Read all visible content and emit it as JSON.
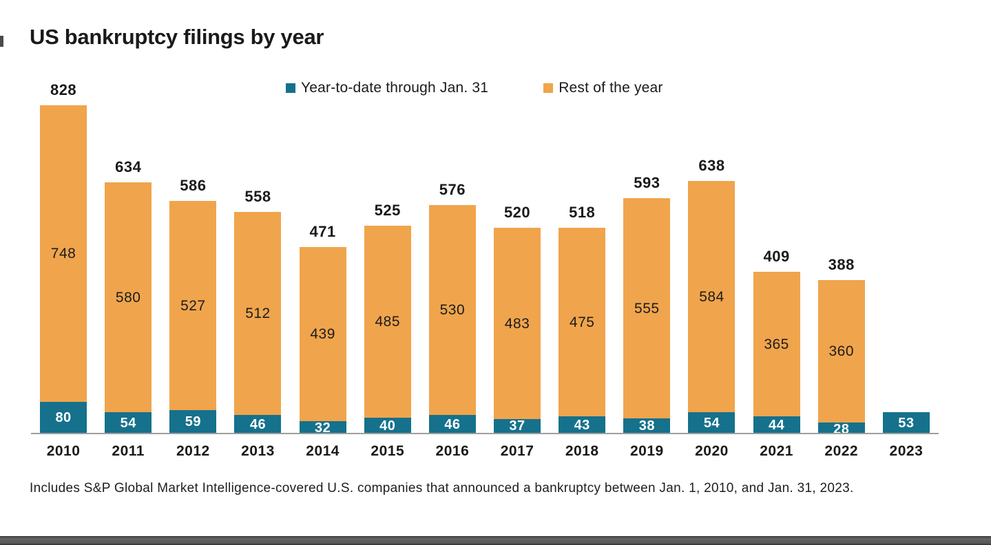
{
  "title": "US bankruptcy filings by year",
  "legend": {
    "items": [
      {
        "label": "Year-to-date through Jan. 31",
        "color": "#15718C"
      },
      {
        "label": "Rest of the year",
        "color": "#F0A44C"
      }
    ]
  },
  "footnote": "Includes S&P Global Market Intelligence-covered U.S. companies that announced a bankruptcy between Jan. 1, 2010, and Jan. 31, 2023.",
  "colors": {
    "ytd_teal": "#15718C",
    "rest_orange": "#F0A44C",
    "axis_gray": "#9E9E9E",
    "text_dark": "#1A1A1A",
    "ytd_label_white": "#FFFFFF"
  },
  "chart_data": {
    "type": "bar",
    "stacked": true,
    "title": "US bankruptcy filings by year",
    "xlabel": "",
    "ylabel": "",
    "grid": false,
    "legend_position": "top-center",
    "ylim": [
      0,
      828
    ],
    "categories": [
      "2010",
      "2011",
      "2012",
      "2013",
      "2014",
      "2015",
      "2016",
      "2017",
      "2018",
      "2019",
      "2020",
      "2021",
      "2022",
      "2023"
    ],
    "series": [
      {
        "name": "Year-to-date through Jan. 31",
        "color": "#15718C",
        "values": [
          80,
          54,
          59,
          46,
          32,
          40,
          46,
          37,
          43,
          38,
          54,
          44,
          28,
          53
        ]
      },
      {
        "name": "Rest of the year",
        "color": "#F0A44C",
        "values": [
          748,
          580,
          527,
          512,
          439,
          485,
          530,
          483,
          475,
          555,
          584,
          365,
          360,
          0
        ]
      }
    ],
    "totals": [
      828,
      634,
      586,
      558,
      471,
      525,
      576,
      520,
      518,
      593,
      638,
      409,
      388,
      53
    ],
    "show_total_label": [
      true,
      true,
      true,
      true,
      true,
      true,
      true,
      true,
      true,
      true,
      true,
      true,
      true,
      false
    ]
  }
}
